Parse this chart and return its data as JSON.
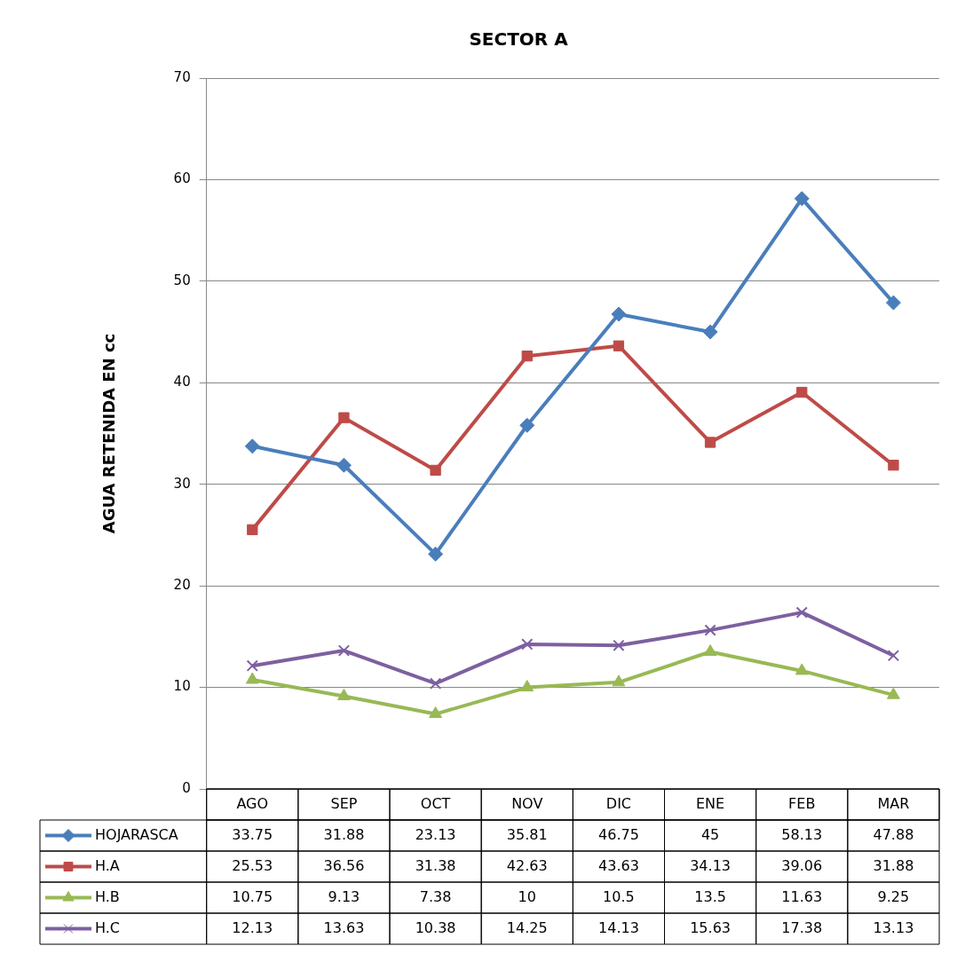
{
  "chart_data": {
    "type": "line",
    "title": "SECTOR A",
    "ylabel": "AGUA RETENIDA EN cc",
    "categories": [
      "AGO",
      "SEP",
      "OCT",
      "NOV",
      "DIC",
      "ENE",
      "FEB",
      "MAR"
    ],
    "series": [
      {
        "name": "HOJARASCA",
        "color": "#4a7ebb",
        "marker": "diamond",
        "values": [
          33.75,
          31.88,
          23.13,
          35.81,
          46.75,
          45,
          58.13,
          47.88
        ]
      },
      {
        "name": "H.A",
        "color": "#be4b48",
        "marker": "square",
        "values": [
          25.53,
          36.56,
          31.38,
          42.63,
          43.63,
          34.13,
          39.06,
          31.88
        ]
      },
      {
        "name": "H.B",
        "color": "#98b954",
        "marker": "triangle",
        "values": [
          10.75,
          9.13,
          7.38,
          10,
          10.5,
          13.5,
          11.63,
          9.25
        ]
      },
      {
        "name": "H.C",
        "color": "#7d60a0",
        "marker": "cross",
        "values": [
          12.13,
          13.63,
          10.38,
          14.25,
          14.13,
          15.63,
          17.38,
          13.13
        ]
      }
    ],
    "ylim": [
      0,
      70
    ],
    "yticks": [
      0,
      10,
      20,
      30,
      40,
      50,
      60,
      70
    ],
    "grid": "y",
    "legend": "bottom",
    "data_labels": true,
    "line_style": "solid"
  }
}
